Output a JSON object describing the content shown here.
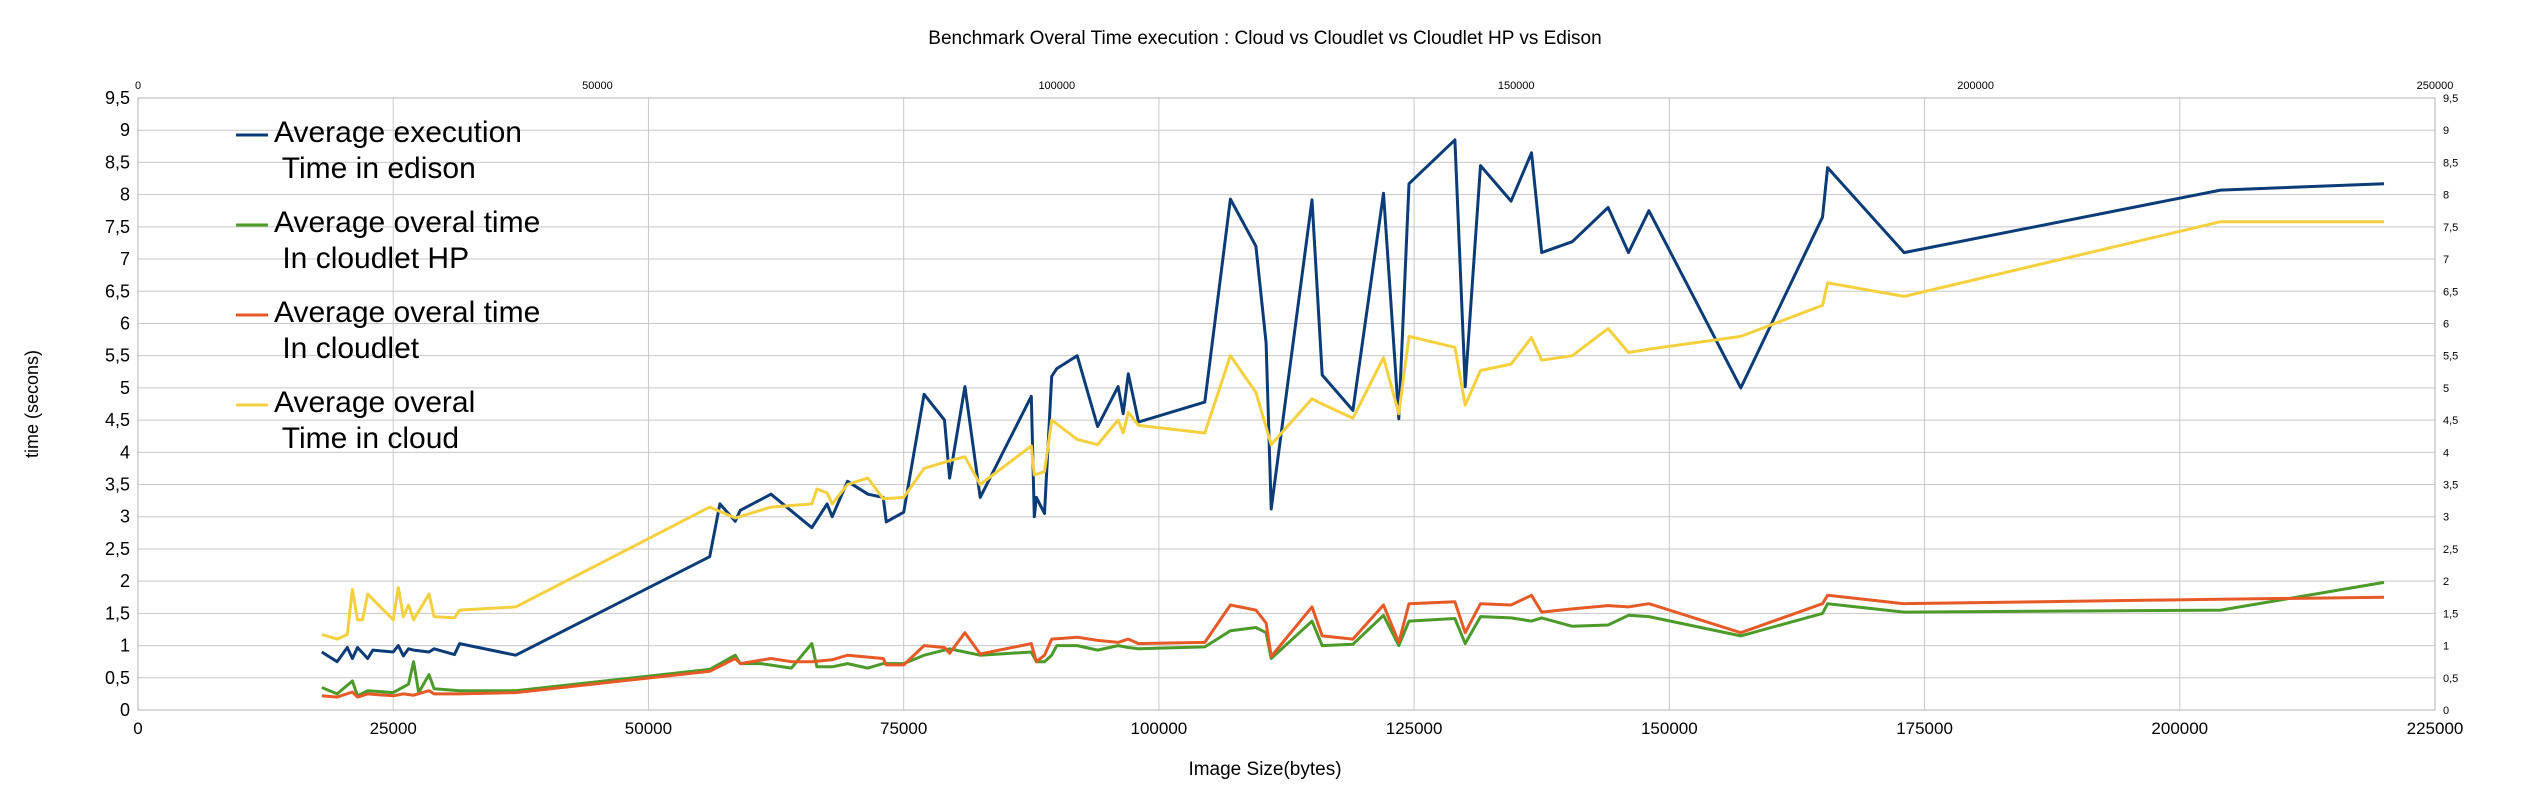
{
  "chart_data": {
    "type": "line",
    "title": "Benchmark Overal Time execution : Cloud  vs Cloudlet vs Cloudlet HP vs Edison",
    "xlabel": "Image Size(bytes)",
    "ylabel": "time (secons)",
    "xlim": [
      0,
      225000
    ],
    "ylim": [
      0,
      9.5
    ],
    "x_ticks": [
      "0",
      "25000",
      "50000",
      "75000",
      "100000",
      "125000",
      "150000",
      "175000",
      "200000",
      "225000"
    ],
    "y_ticks": [
      "0",
      "0,5",
      "1",
      "1,5",
      "2",
      "2,5",
      "3",
      "3,5",
      "4",
      "4,5",
      "5",
      "5,5",
      "6",
      "6,5",
      "7",
      "7,5",
      "8",
      "8,5",
      "9",
      "9,5"
    ],
    "top_xlim": [
      0,
      250000
    ],
    "top_x_ticks": [
      "0",
      "50000",
      "100000",
      "150000",
      "200000",
      "250000"
    ],
    "grid": true,
    "legend_position": "top-left",
    "series": [
      {
        "name": "Average  execution\n  Time in edison",
        "color": "#0b3c78",
        "points": [
          [
            18000,
            0.9
          ],
          [
            19500,
            0.75
          ],
          [
            20500,
            0.97
          ],
          [
            21000,
            0.8
          ],
          [
            21500,
            0.97
          ],
          [
            22500,
            0.8
          ],
          [
            23000,
            0.93
          ],
          [
            25000,
            0.9
          ],
          [
            25500,
            1.0
          ],
          [
            26000,
            0.84
          ],
          [
            26500,
            0.95
          ],
          [
            27000,
            0.93
          ],
          [
            28500,
            0.9
          ],
          [
            29000,
            0.95
          ],
          [
            31000,
            0.86
          ],
          [
            31500,
            1.03
          ],
          [
            37000,
            0.85
          ],
          [
            56000,
            2.38
          ],
          [
            57000,
            3.2
          ],
          [
            58500,
            2.93
          ],
          [
            59000,
            3.1
          ],
          [
            62000,
            3.35
          ],
          [
            66000,
            2.83
          ],
          [
            67500,
            3.2
          ],
          [
            68000,
            3.0
          ],
          [
            69500,
            3.55
          ],
          [
            71500,
            3.35
          ],
          [
            73000,
            3.3
          ],
          [
            73300,
            2.92
          ],
          [
            75000,
            3.07
          ],
          [
            77000,
            4.9
          ],
          [
            79000,
            4.5
          ],
          [
            79500,
            3.6
          ],
          [
            81000,
            5.02
          ],
          [
            82500,
            3.3
          ],
          [
            87500,
            4.87
          ],
          [
            87800,
            3.0
          ],
          [
            88000,
            3.3
          ],
          [
            88800,
            3.05
          ],
          [
            89500,
            5.18
          ],
          [
            90000,
            5.3
          ],
          [
            92000,
            5.5
          ],
          [
            94000,
            4.4
          ],
          [
            96000,
            5.02
          ],
          [
            96500,
            4.6
          ],
          [
            97000,
            5.22
          ],
          [
            98000,
            4.47
          ],
          [
            104500,
            4.78
          ],
          [
            107000,
            7.93
          ],
          [
            109500,
            7.2
          ],
          [
            110500,
            5.7
          ],
          [
            111000,
            3.12
          ],
          [
            115000,
            7.92
          ],
          [
            116000,
            5.2
          ],
          [
            119000,
            4.65
          ],
          [
            122000,
            8.02
          ],
          [
            123500,
            4.52
          ],
          [
            124500,
            8.17
          ],
          [
            129000,
            8.85
          ],
          [
            130000,
            5.02
          ],
          [
            131500,
            8.45
          ],
          [
            134500,
            7.9
          ],
          [
            136500,
            8.65
          ],
          [
            137500,
            7.1
          ],
          [
            140500,
            7.27
          ],
          [
            144000,
            7.8
          ],
          [
            146000,
            7.1
          ],
          [
            148000,
            7.75
          ],
          [
            157000,
            5.0
          ],
          [
            165000,
            7.65
          ],
          [
            165500,
            8.42
          ],
          [
            173000,
            7.1
          ],
          [
            204000,
            8.07
          ],
          [
            220000,
            8.17
          ]
        ]
      },
      {
        "name": "Average overal time\n  In cloudlet HP",
        "color": "#4c9a2a",
        "points": [
          [
            18000,
            0.35
          ],
          [
            19500,
            0.25
          ],
          [
            21000,
            0.45
          ],
          [
            21500,
            0.22
          ],
          [
            22500,
            0.3
          ],
          [
            25000,
            0.27
          ],
          [
            26500,
            0.4
          ],
          [
            27000,
            0.75
          ],
          [
            27500,
            0.27
          ],
          [
            28500,
            0.55
          ],
          [
            29000,
            0.33
          ],
          [
            31500,
            0.3
          ],
          [
            37000,
            0.3
          ],
          [
            56000,
            0.63
          ],
          [
            58500,
            0.85
          ],
          [
            59000,
            0.72
          ],
          [
            61000,
            0.72
          ],
          [
            64000,
            0.65
          ],
          [
            66000,
            1.03
          ],
          [
            66500,
            0.67
          ],
          [
            68000,
            0.67
          ],
          [
            69500,
            0.72
          ],
          [
            71500,
            0.65
          ],
          [
            73000,
            0.72
          ],
          [
            75000,
            0.72
          ],
          [
            77000,
            0.85
          ],
          [
            79500,
            0.95
          ],
          [
            81000,
            0.9
          ],
          [
            82500,
            0.85
          ],
          [
            87500,
            0.9
          ],
          [
            88000,
            0.75
          ],
          [
            88800,
            0.75
          ],
          [
            89500,
            0.85
          ],
          [
            90000,
            1.0
          ],
          [
            92000,
            1.0
          ],
          [
            94000,
            0.93
          ],
          [
            96000,
            1.0
          ],
          [
            97000,
            0.97
          ],
          [
            98000,
            0.95
          ],
          [
            104500,
            0.98
          ],
          [
            107000,
            1.23
          ],
          [
            109500,
            1.28
          ],
          [
            110500,
            1.2
          ],
          [
            111000,
            0.8
          ],
          [
            115000,
            1.38
          ],
          [
            116000,
            1.0
          ],
          [
            119000,
            1.02
          ],
          [
            122000,
            1.47
          ],
          [
            123500,
            1.0
          ],
          [
            124500,
            1.38
          ],
          [
            129000,
            1.42
          ],
          [
            130000,
            1.03
          ],
          [
            131500,
            1.45
          ],
          [
            134500,
            1.43
          ],
          [
            136500,
            1.38
          ],
          [
            137500,
            1.43
          ],
          [
            140500,
            1.3
          ],
          [
            144000,
            1.32
          ],
          [
            146000,
            1.47
          ],
          [
            148000,
            1.45
          ],
          [
            157000,
            1.15
          ],
          [
            165000,
            1.5
          ],
          [
            165500,
            1.65
          ],
          [
            173000,
            1.52
          ],
          [
            204000,
            1.55
          ],
          [
            220000,
            1.98
          ]
        ]
      },
      {
        "name": "Average overal time\n  In cloudlet",
        "color": "#e55a27",
        "points": [
          [
            18000,
            0.22
          ],
          [
            19500,
            0.2
          ],
          [
            21000,
            0.28
          ],
          [
            21500,
            0.2
          ],
          [
            22500,
            0.25
          ],
          [
            25000,
            0.22
          ],
          [
            26000,
            0.25
          ],
          [
            27000,
            0.23
          ],
          [
            28500,
            0.3
          ],
          [
            29000,
            0.25
          ],
          [
            31500,
            0.25
          ],
          [
            37000,
            0.27
          ],
          [
            56000,
            0.6
          ],
          [
            58500,
            0.8
          ],
          [
            59000,
            0.72
          ],
          [
            62000,
            0.8
          ],
          [
            64000,
            0.75
          ],
          [
            66000,
            0.75
          ],
          [
            68000,
            0.78
          ],
          [
            69500,
            0.85
          ],
          [
            73000,
            0.8
          ],
          [
            73300,
            0.7
          ],
          [
            75000,
            0.7
          ],
          [
            77000,
            1.0
          ],
          [
            79000,
            0.97
          ],
          [
            79500,
            0.88
          ],
          [
            81000,
            1.2
          ],
          [
            82500,
            0.87
          ],
          [
            87500,
            1.03
          ],
          [
            88000,
            0.75
          ],
          [
            88800,
            0.85
          ],
          [
            89500,
            1.1
          ],
          [
            92000,
            1.13
          ],
          [
            94000,
            1.08
          ],
          [
            96000,
            1.05
          ],
          [
            97000,
            1.1
          ],
          [
            98000,
            1.03
          ],
          [
            104500,
            1.05
          ],
          [
            107000,
            1.63
          ],
          [
            109500,
            1.55
          ],
          [
            110500,
            1.35
          ],
          [
            111000,
            0.83
          ],
          [
            115000,
            1.6
          ],
          [
            116000,
            1.15
          ],
          [
            119000,
            1.1
          ],
          [
            122000,
            1.63
          ],
          [
            123500,
            1.05
          ],
          [
            124500,
            1.65
          ],
          [
            129000,
            1.68
          ],
          [
            130000,
            1.2
          ],
          [
            131500,
            1.65
          ],
          [
            134500,
            1.63
          ],
          [
            136500,
            1.78
          ],
          [
            137500,
            1.52
          ],
          [
            140500,
            1.57
          ],
          [
            144000,
            1.62
          ],
          [
            146000,
            1.6
          ],
          [
            148000,
            1.65
          ],
          [
            157000,
            1.2
          ],
          [
            165000,
            1.65
          ],
          [
            165500,
            1.78
          ],
          [
            173000,
            1.65
          ],
          [
            204000,
            1.72
          ],
          [
            220000,
            1.75
          ]
        ]
      },
      {
        "name": "Average overal\n  Time in cloud",
        "color": "#f4d03f",
        "points": [
          [
            18000,
            1.17
          ],
          [
            19500,
            1.1
          ],
          [
            20500,
            1.17
          ],
          [
            21000,
            1.87
          ],
          [
            21500,
            1.4
          ],
          [
            22000,
            1.4
          ],
          [
            22500,
            1.8
          ],
          [
            25000,
            1.4
          ],
          [
            25500,
            1.9
          ],
          [
            26000,
            1.45
          ],
          [
            26500,
            1.63
          ],
          [
            27000,
            1.4
          ],
          [
            28500,
            1.8
          ],
          [
            29000,
            1.45
          ],
          [
            31000,
            1.43
          ],
          [
            31500,
            1.55
          ],
          [
            37000,
            1.6
          ],
          [
            56000,
            3.15
          ],
          [
            58500,
            2.98
          ],
          [
            62000,
            3.15
          ],
          [
            66000,
            3.2
          ],
          [
            66500,
            3.43
          ],
          [
            67500,
            3.37
          ],
          [
            68000,
            3.2
          ],
          [
            69500,
            3.5
          ],
          [
            71500,
            3.6
          ],
          [
            73000,
            3.28
          ],
          [
            75000,
            3.3
          ],
          [
            77000,
            3.75
          ],
          [
            79500,
            3.87
          ],
          [
            81000,
            3.93
          ],
          [
            82500,
            3.5
          ],
          [
            87500,
            4.1
          ],
          [
            87800,
            3.65
          ],
          [
            88800,
            3.7
          ],
          [
            89500,
            4.5
          ],
          [
            92000,
            4.2
          ],
          [
            94000,
            4.12
          ],
          [
            96000,
            4.5
          ],
          [
            96500,
            4.3
          ],
          [
            97000,
            4.62
          ],
          [
            98000,
            4.42
          ],
          [
            104500,
            4.3
          ],
          [
            107000,
            5.5
          ],
          [
            109500,
            4.93
          ],
          [
            111000,
            4.12
          ],
          [
            115000,
            4.83
          ],
          [
            116000,
            4.75
          ],
          [
            119000,
            4.53
          ],
          [
            122000,
            5.47
          ],
          [
            123500,
            4.6
          ],
          [
            124500,
            5.8
          ],
          [
            129000,
            5.63
          ],
          [
            130000,
            4.73
          ],
          [
            131500,
            5.27
          ],
          [
            134500,
            5.37
          ],
          [
            136500,
            5.78
          ],
          [
            137500,
            5.43
          ],
          [
            140500,
            5.5
          ],
          [
            144000,
            5.92
          ],
          [
            146000,
            5.55
          ],
          [
            148000,
            5.6
          ],
          [
            157000,
            5.8
          ],
          [
            165000,
            6.28
          ],
          [
            165500,
            6.63
          ],
          [
            173000,
            6.42
          ],
          [
            204000,
            7.58
          ],
          [
            220000,
            7.58
          ]
        ]
      }
    ]
  }
}
